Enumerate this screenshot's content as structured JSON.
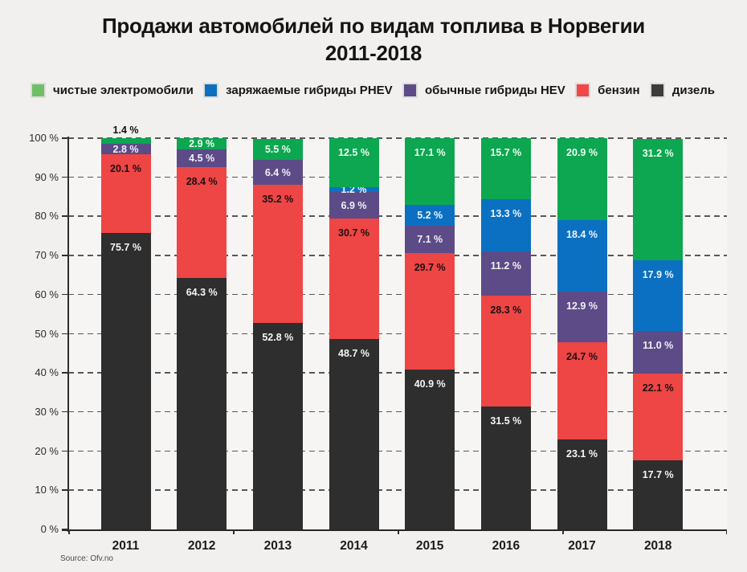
{
  "title": {
    "line1": "Продажи автомобилей по видам топлива в Норвегии",
    "line2": "2011-2018"
  },
  "source": "Source: Ofv.no",
  "legend": [
    {
      "label": "чистые электромобили",
      "color": "#6fbf68"
    },
    {
      "label": "заряжаемые гибриды PHEV",
      "color": "#0b70c2"
    },
    {
      "label": "обычные гибриды HEV",
      "color": "#5c4b87"
    },
    {
      "label": "бензин",
      "color": "#f04848"
    },
    {
      "label": "дизель",
      "color": "#3b3b3b"
    }
  ],
  "chart_data": {
    "type": "bar",
    "variant": "stacked-percent",
    "title": "Продажи автомобилей по видам топлива в Норвегии 2011-2018",
    "categories": [
      "2011",
      "2012",
      "2013",
      "2014",
      "2015",
      "2016",
      "2017",
      "2018"
    ],
    "series": [
      {
        "key": "diesel",
        "name": "дизель",
        "color": "#2e2e2e",
        "label_color": "#f5f5f5",
        "values": [
          75.7,
          64.3,
          52.8,
          48.7,
          40.9,
          31.5,
          23.1,
          17.7
        ]
      },
      {
        "key": "petrol",
        "name": "бензин",
        "color": "#ee4545",
        "label_color": "#1c1012",
        "values": [
          20.1,
          28.4,
          35.2,
          30.7,
          29.7,
          28.3,
          24.7,
          22.1
        ]
      },
      {
        "key": "hev",
        "name": "обычные гибриды HEV",
        "color": "#5c4b87",
        "label_color": "#f2f0f5",
        "values": [
          2.8,
          4.5,
          6.4,
          6.9,
          7.1,
          11.2,
          12.9,
          11.0
        ]
      },
      {
        "key": "phev",
        "name": "заряжаемые гибриды PHEV",
        "color": "#0b70c2",
        "label_color": "#eef4fa",
        "values": [
          0,
          0,
          0,
          1.2,
          5.2,
          13.3,
          18.4,
          17.9
        ]
      },
      {
        "key": "bev",
        "name": "чистые электромобили",
        "color": "#0ca750",
        "label_color": "#f2faf4",
        "values": [
          1.4,
          2.9,
          5.5,
          12.5,
          17.1,
          15.7,
          20.9,
          31.2
        ]
      }
    ],
    "xlabel": "",
    "ylabel": "",
    "ylim": [
      0,
      100
    ],
    "y_ticks": [
      "0 %",
      "10 %",
      "20 %",
      "30 %",
      "40 %",
      "50 %",
      "60 %",
      "70 %",
      "80 %",
      "90 %",
      "100 %"
    ],
    "value_suffix": " %",
    "grid": "dashed-horizontal",
    "legend_position": "top",
    "source": "Source: Ofv.no"
  }
}
